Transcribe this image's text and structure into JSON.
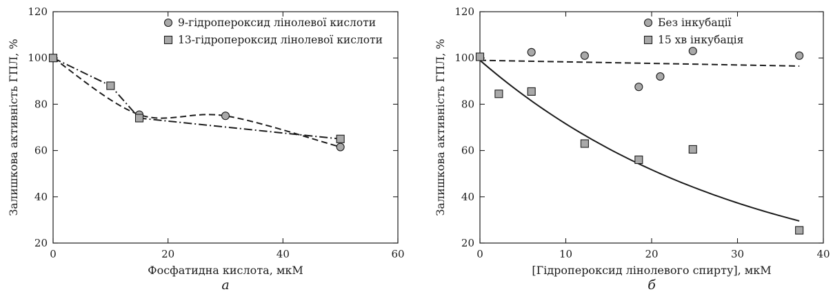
{
  "chart_data": [
    {
      "type": "scatter",
      "panel_label": "а",
      "xlabel": "Фосфатидна кислота, мкМ",
      "ylabel": "Залишкова активність ГПЛ, %",
      "xlim": [
        0,
        60
      ],
      "ylim": [
        20,
        120
      ],
      "xticks": [
        0,
        20,
        40,
        60
      ],
      "yticks": [
        20,
        40,
        60,
        80,
        100,
        120
      ],
      "grid": false,
      "legend_position": "top-right",
      "series": [
        {
          "name": "9-гідропероксид лінолевої кислоти",
          "marker": "circle",
          "line_style": "dashed",
          "x": [
            0,
            15,
            30,
            50
          ],
          "y": [
            100,
            75.5,
            75,
            61.5
          ]
        },
        {
          "name": "13-гідропероксид лінолевої кислоти",
          "marker": "square",
          "line_style": "dash-dot",
          "x": [
            0,
            10,
            15,
            50
          ],
          "y": [
            100,
            88,
            74,
            65
          ]
        }
      ]
    },
    {
      "type": "scatter",
      "panel_label": "б",
      "xlabel": "[Гідропероксид лінолевого спирту], мкМ",
      "ylabel": "Залишкова активність ГПЛ, %",
      "xlim": [
        0,
        40
      ],
      "ylim": [
        20,
        120
      ],
      "xticks": [
        0,
        10,
        20,
        30,
        40
      ],
      "yticks": [
        20,
        40,
        60,
        80,
        100,
        120
      ],
      "grid": false,
      "legend_position": "top-right",
      "series": [
        {
          "name": "Без інкубації",
          "marker": "circle",
          "x": [
            0,
            6,
            12.2,
            18.5,
            21,
            24.8,
            37.2
          ],
          "y": [
            100.5,
            102.5,
            101,
            87.5,
            92,
            103,
            101
          ],
          "fit": {
            "style": "dashed",
            "x": [
              0,
              37.2
            ],
            "y": [
              99,
              96.5
            ]
          }
        },
        {
          "name": "15 хв інкубація",
          "marker": "square",
          "x": [
            0,
            2.2,
            6,
            12.2,
            18.5,
            24.8,
            37.2
          ],
          "y": [
            100.5,
            84.5,
            85.5,
            63,
            56,
            60.5,
            25.5
          ],
          "fit": {
            "style": "solid",
            "model": "exponential",
            "a": 99,
            "k": 0.0325,
            "x_range": [
              0,
              37.2
            ]
          }
        }
      ]
    }
  ]
}
